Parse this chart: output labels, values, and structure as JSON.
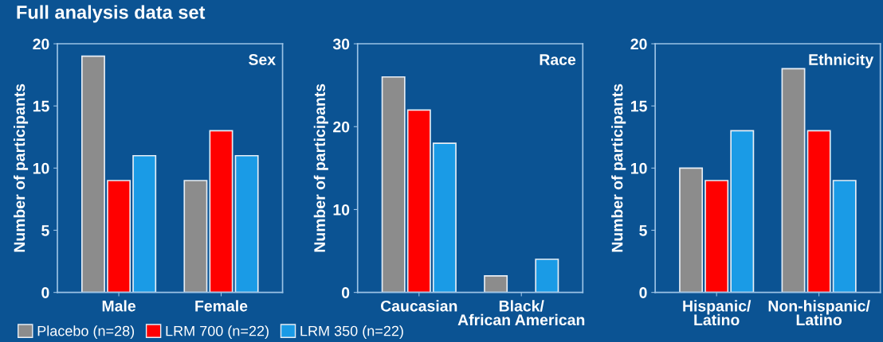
{
  "chart_data": [
    {
      "type": "bar",
      "title": "Full analysis data set",
      "ylabel": "Number of participants",
      "annotations": [
        "Sex"
      ],
      "categories": [
        "Male",
        "Female"
      ],
      "ylim": [
        0,
        20
      ],
      "yticks": [
        0,
        5,
        10,
        15,
        20
      ],
      "legend": "bottom",
      "grid": false,
      "series": [
        {
          "name": "Placebo (n=28)",
          "color": "#8c8c8c",
          "values": [
            19,
            9
          ]
        },
        {
          "name": "LRM 700 (n=22)",
          "color": "#ff0000",
          "values": [
            9,
            13
          ]
        },
        {
          "name": "LRM 350 (n=22)",
          "color": "#1a9be6",
          "values": [
            11,
            11
          ]
        }
      ]
    },
    {
      "type": "bar",
      "ylabel": "Number of participants",
      "annotations": [
        "Race"
      ],
      "categories": [
        "Caucasian",
        "Black/\nAfrican American"
      ],
      "ylim": [
        0,
        30
      ],
      "yticks": [
        0,
        10,
        20,
        30
      ],
      "grid": false,
      "series": [
        {
          "color": "#8c8c8c",
          "values": [
            26,
            2
          ]
        },
        {
          "color": "#ff0000",
          "values": [
            22,
            0
          ]
        },
        {
          "color": "#1a9be6",
          "values": [
            18,
            4
          ]
        }
      ]
    },
    {
      "type": "bar",
      "ylabel": "Number of participants",
      "annotations": [
        "Ethnicity"
      ],
      "categories": [
        "Hispanic/\nLatino",
        "Non-hispanic/\nLatino"
      ],
      "ylim": [
        0,
        20
      ],
      "yticks": [
        0,
        5,
        10,
        15,
        20
      ],
      "grid": false,
      "series": [
        {
          "color": "#8c8c8c",
          "values": [
            10,
            18
          ]
        },
        {
          "color": "#ff0000",
          "values": [
            9,
            13
          ]
        },
        {
          "color": "#1a9be6",
          "values": [
            13,
            9
          ]
        }
      ]
    }
  ]
}
